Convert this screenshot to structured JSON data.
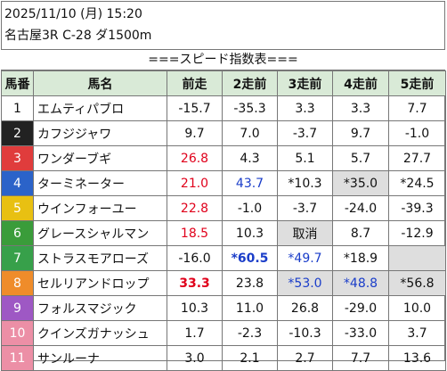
{
  "header": {
    "date_line": "2025/11/10 (月) 15:20",
    "race_line": "名古屋3R C-28 ダ1500m"
  },
  "title": "===スピード指数表===",
  "columns": [
    "馬番",
    "馬名",
    "前走",
    "2走前",
    "3走前",
    "4走前",
    "5走前"
  ],
  "colors": {
    "header_bg": "#d9ead7",
    "gray_cell": "#dedede",
    "red_text": "#e0001b",
    "blue_text": "#1a3dc9"
  },
  "rows": [
    {
      "no": "1",
      "bg": "#ffffff",
      "fg": "#111111",
      "name": "エムティパブロ",
      "cells": [
        {
          "v": "-15.7"
        },
        {
          "v": "-35.3"
        },
        {
          "v": "3.3"
        },
        {
          "v": "3.3"
        },
        {
          "v": "7.7"
        }
      ]
    },
    {
      "no": "2",
      "bg": "#222222",
      "fg": "#ffffff",
      "name": "カフジジャワ",
      "cells": [
        {
          "v": "9.7"
        },
        {
          "v": "7.0"
        },
        {
          "v": "-3.7"
        },
        {
          "v": "9.7"
        },
        {
          "v": "-1.0"
        }
      ]
    },
    {
      "no": "3",
      "bg": "#e03c3c",
      "fg": "#ffffff",
      "name": "ワンダーブギ",
      "cells": [
        {
          "v": "26.8",
          "c": "red"
        },
        {
          "v": "4.3"
        },
        {
          "v": "5.1"
        },
        {
          "v": "5.7"
        },
        {
          "v": "27.7"
        }
      ]
    },
    {
      "no": "4",
      "bg": "#2b63c9",
      "fg": "#ffffff",
      "name": "ターミネーター",
      "cells": [
        {
          "v": "21.0",
          "c": "red"
        },
        {
          "v": "43.7",
          "c": "blue"
        },
        {
          "v": "*10.3"
        },
        {
          "v": "*35.0",
          "g": true
        },
        {
          "v": "*24.5"
        }
      ]
    },
    {
      "no": "5",
      "bg": "#e8c012",
      "fg": "#ffffff",
      "name": "ウインフォーユー",
      "cells": [
        {
          "v": "22.8",
          "c": "red"
        },
        {
          "v": "-1.0"
        },
        {
          "v": "-3.7"
        },
        {
          "v": "-24.0"
        },
        {
          "v": "-39.3"
        }
      ]
    },
    {
      "no": "6",
      "bg": "#3a9c3a",
      "fg": "#ffffff",
      "name": "グレースシャルマン",
      "cells": [
        {
          "v": "18.5",
          "c": "red"
        },
        {
          "v": "10.3"
        },
        {
          "v": "取消",
          "g": true
        },
        {
          "v": "8.7"
        },
        {
          "v": "-12.9"
        }
      ]
    },
    {
      "no": "7",
      "bg": "#37a04a",
      "fg": "#ffffff",
      "name": "ストラスモアローズ",
      "cells": [
        {
          "v": "-16.0"
        },
        {
          "v": "*60.5",
          "c": "blue",
          "b": true
        },
        {
          "v": "*49.7",
          "c": "blue"
        },
        {
          "v": "*18.9"
        },
        {
          "v": "",
          "g": true
        }
      ]
    },
    {
      "no": "8",
      "bg": "#ef8c2a",
      "fg": "#ffffff",
      "name": "セルリアンドロップ",
      "cells": [
        {
          "v": "33.3",
          "c": "red",
          "b": true
        },
        {
          "v": "23.8"
        },
        {
          "v": "*53.0",
          "c": "blue",
          "g": true
        },
        {
          "v": "*48.8",
          "c": "blue",
          "g": true
        },
        {
          "v": "*56.8",
          "g": true
        }
      ]
    },
    {
      "no": "9",
      "bg": "#9e58c4",
      "fg": "#ffffff",
      "name": "フォルスマジック",
      "cells": [
        {
          "v": "10.3"
        },
        {
          "v": "11.0"
        },
        {
          "v": "26.8"
        },
        {
          "v": "-29.0"
        },
        {
          "v": "10.0"
        }
      ]
    },
    {
      "no": "10",
      "bg": "#ec8fa6",
      "fg": "#ffffff",
      "name": "クインズガナッシュ",
      "cells": [
        {
          "v": "1.7"
        },
        {
          "v": "-2.3"
        },
        {
          "v": "-10.3"
        },
        {
          "v": "-33.0"
        },
        {
          "v": "3.7"
        }
      ]
    },
    {
      "no": "11",
      "bg": "#ec8fa6",
      "fg": "#ffffff",
      "name": "サンルーナ",
      "cells": [
        {
          "v": "3.0"
        },
        {
          "v": "2.1"
        },
        {
          "v": "2.7"
        },
        {
          "v": "7.7"
        },
        {
          "v": "13.6"
        }
      ]
    }
  ]
}
